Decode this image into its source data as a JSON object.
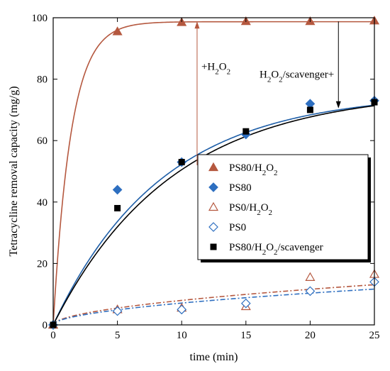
{
  "chart_data": {
    "type": "scatter",
    "xlabel": "time (min)",
    "ylabel": "Tetracycline removal capacity (mg/g)",
    "xlim": [
      0,
      25
    ],
    "ylim": [
      0,
      100
    ],
    "xticks": [
      0,
      5,
      10,
      15,
      20,
      25
    ],
    "yticks": [
      0,
      20,
      40,
      60,
      80,
      100
    ],
    "legend_position": "center-right",
    "series": [
      {
        "name": "PS80/H2O2",
        "label_main": "PS80/H",
        "label_sub": "2",
        "label_mid": "O",
        "label_sub2": "2",
        "marker": "triangle-filled",
        "color": "#b5583f",
        "x": [
          0,
          5,
          10,
          15,
          20,
          25
        ],
        "y": [
          0,
          95.5,
          98.5,
          98.8,
          98.8,
          99
        ],
        "fit": {
          "model": "exp",
          "A": 98.7,
          "k": 0.72,
          "color": "#b5583f",
          "dash": ""
        }
      },
      {
        "name": "PS80",
        "label_main": "PS80",
        "label_sub": "",
        "label_mid": "",
        "label_sub2": "",
        "marker": "diamond-filled",
        "color": "#2e6fc0",
        "x": [
          0,
          5,
          10,
          15,
          20,
          25
        ],
        "y": [
          0,
          44,
          53,
          62,
          72,
          73
        ],
        "fit": {
          "model": "exp",
          "A": 75.5,
          "k": 0.118,
          "color": "#1f5fa8",
          "dash": ""
        }
      },
      {
        "name": "PS0/H2O2",
        "label_main": "PS0/H",
        "label_sub": "2",
        "label_mid": "O",
        "label_sub2": "2",
        "marker": "triangle-open",
        "color": "#b5583f",
        "x": [
          0,
          5,
          10,
          15,
          20,
          25
        ],
        "y": [
          0,
          5,
          5.5,
          6,
          15.5,
          16.5
        ],
        "fit": {
          "model": "power",
          "a": 2.3,
          "b": 0.54,
          "color": "#b5583f",
          "dash": "7,3,2,3"
        }
      },
      {
        "name": "PS0",
        "label_main": "PS0",
        "label_sub": "",
        "label_mid": "",
        "label_sub2": "",
        "marker": "diamond-open",
        "color": "#2e6fc0",
        "x": [
          0,
          5,
          10,
          15,
          20,
          25
        ],
        "y": [
          0,
          4.5,
          5,
          7,
          11,
          14
        ],
        "fit": {
          "model": "power",
          "a": 2.05,
          "b": 0.54,
          "color": "#2e6fc0",
          "dash": "7,3,2,3"
        }
      },
      {
        "name": "PS80/H2O2/scavenger",
        "label_main": "PS80/H",
        "label_sub": "2",
        "label_mid": "O",
        "label_sub2": "2",
        "label_tail": "/scavenger",
        "marker": "square-filled",
        "color": "#000000",
        "x": [
          0,
          5,
          10,
          15,
          20,
          25
        ],
        "y": [
          0,
          38,
          53,
          63,
          70,
          72.5
        ],
        "fit": {
          "model": "exp",
          "A": 76.5,
          "k": 0.108,
          "color": "#000000",
          "dash": ""
        }
      }
    ],
    "annotations": {
      "add_h2o2": {
        "prefix": "+H",
        "sub": "2",
        "mid": "O",
        "sub2": "2",
        "x": 11.2,
        "y_from": 52,
        "y_to": 98.8,
        "color": "#b5583f"
      },
      "scavenger": {
        "prefix": "H",
        "sub": "2",
        "mid": "O",
        "sub2": "2",
        "suffix": "/scavenger+",
        "x": 22.2,
        "y_from": 98.8,
        "y_to": 70.5,
        "color": "#000000"
      }
    }
  }
}
